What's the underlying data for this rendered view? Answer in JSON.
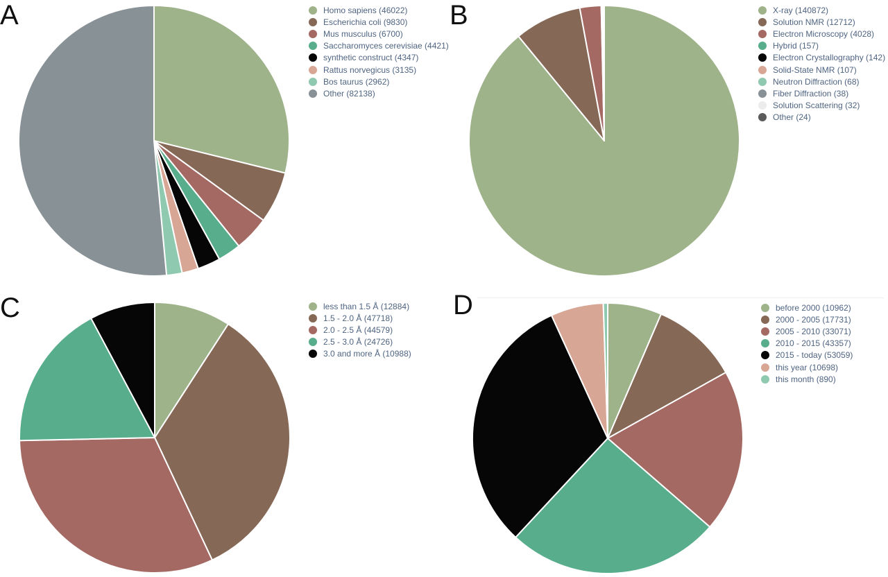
{
  "figure": {
    "panels": [
      {
        "letter": "A"
      },
      {
        "letter": "B"
      },
      {
        "letter": "C"
      },
      {
        "letter": "D"
      }
    ]
  },
  "chart_data": [
    {
      "type": "pie",
      "panel": "A",
      "legend_position": "right",
      "slices": [
        {
          "label": "Homo sapiens (46022)",
          "value": 46022,
          "color": "#9eb38a"
        },
        {
          "label": "Escherichia coli (9830)",
          "value": 9830,
          "color": "#866857"
        },
        {
          "label": "Mus musculus (6700)",
          "value": 6700,
          "color": "#a56963"
        },
        {
          "label": "Saccharomyces cerevisiae (4421)",
          "value": 4421,
          "color": "#57ad8c"
        },
        {
          "label": "synthetic construct (4347)",
          "value": 4347,
          "color": "#060606"
        },
        {
          "label": "Rattus norvegicus (3135)",
          "value": 3135,
          "color": "#d8a695"
        },
        {
          "label": "Bos taurus (2962)",
          "value": 2962,
          "color": "#8fc9b0"
        },
        {
          "label": "Other (82138)",
          "value": 82138,
          "color": "#889196"
        }
      ]
    },
    {
      "type": "pie",
      "panel": "B",
      "legend_position": "right",
      "slices": [
        {
          "label": "X-ray (140872)",
          "value": 140872,
          "color": "#9eb38a"
        },
        {
          "label": "Solution NMR (12712)",
          "value": 12712,
          "color": "#866857"
        },
        {
          "label": "Electron Microscopy (4028)",
          "value": 4028,
          "color": "#a56963"
        },
        {
          "label": "Hybrid (157)",
          "value": 157,
          "color": "#57ad8c"
        },
        {
          "label": "Electron Crystallography (142)",
          "value": 142,
          "color": "#060606"
        },
        {
          "label": "Solid-State NMR (107)",
          "value": 107,
          "color": "#d8a695"
        },
        {
          "label": "Neutron Diffraction (68)",
          "value": 68,
          "color": "#8fc9b0"
        },
        {
          "label": "Fiber Diffraction (38)",
          "value": 38,
          "color": "#889196"
        },
        {
          "label": "Solution Scattering (32)",
          "value": 32,
          "color": "#ececec"
        },
        {
          "label": "Other (24)",
          "value": 24,
          "color": "#5b5b5b"
        }
      ]
    },
    {
      "type": "pie",
      "panel": "C",
      "legend_position": "right",
      "slices": [
        {
          "label": "less than 1.5 Å (12884)",
          "value": 12884,
          "color": "#9eb38a"
        },
        {
          "label": "1.5 - 2.0 Å (47718)",
          "value": 47718,
          "color": "#866857"
        },
        {
          "label": "2.0 - 2.5 Å (44579)",
          "value": 44579,
          "color": "#a56963"
        },
        {
          "label": "2.5 - 3.0 Å (24726)",
          "value": 24726,
          "color": "#57ad8c"
        },
        {
          "label": "3.0 and more Å (10988)",
          "value": 10988,
          "color": "#060606"
        }
      ]
    },
    {
      "type": "pie",
      "panel": "D",
      "legend_position": "right",
      "slices": [
        {
          "label": "before 2000 (10962)",
          "value": 10962,
          "color": "#9eb38a"
        },
        {
          "label": "2000 - 2005 (17731)",
          "value": 17731,
          "color": "#866857"
        },
        {
          "label": "2005 - 2010 (33071)",
          "value": 33071,
          "color": "#a56963"
        },
        {
          "label": "2010 - 2015 (43357)",
          "value": 43357,
          "color": "#57ad8c"
        },
        {
          "label": "2015 - today (53059)",
          "value": 53059,
          "color": "#060606"
        },
        {
          "label": "this year (10698)",
          "value": 10698,
          "color": "#d8a695"
        },
        {
          "label": "this month (890)",
          "value": 890,
          "color": "#8fc9b0"
        }
      ]
    }
  ]
}
